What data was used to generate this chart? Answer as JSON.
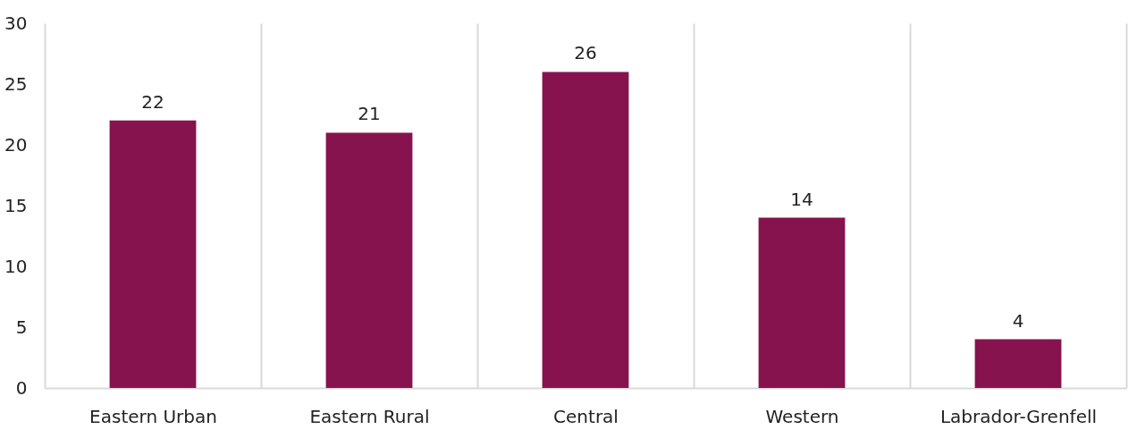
{
  "chart_data": {
    "type": "bar",
    "categories": [
      "Eastern Urban",
      "Eastern Rural",
      "Central",
      "Western",
      "Labrador-Grenfell"
    ],
    "values": [
      22,
      21,
      26,
      14,
      4
    ],
    "color": "#87134e",
    "ylim": [
      0,
      30
    ],
    "yticks": [
      0,
      5,
      10,
      15,
      20,
      25,
      30
    ],
    "grid": "x",
    "data_labels": true
  }
}
